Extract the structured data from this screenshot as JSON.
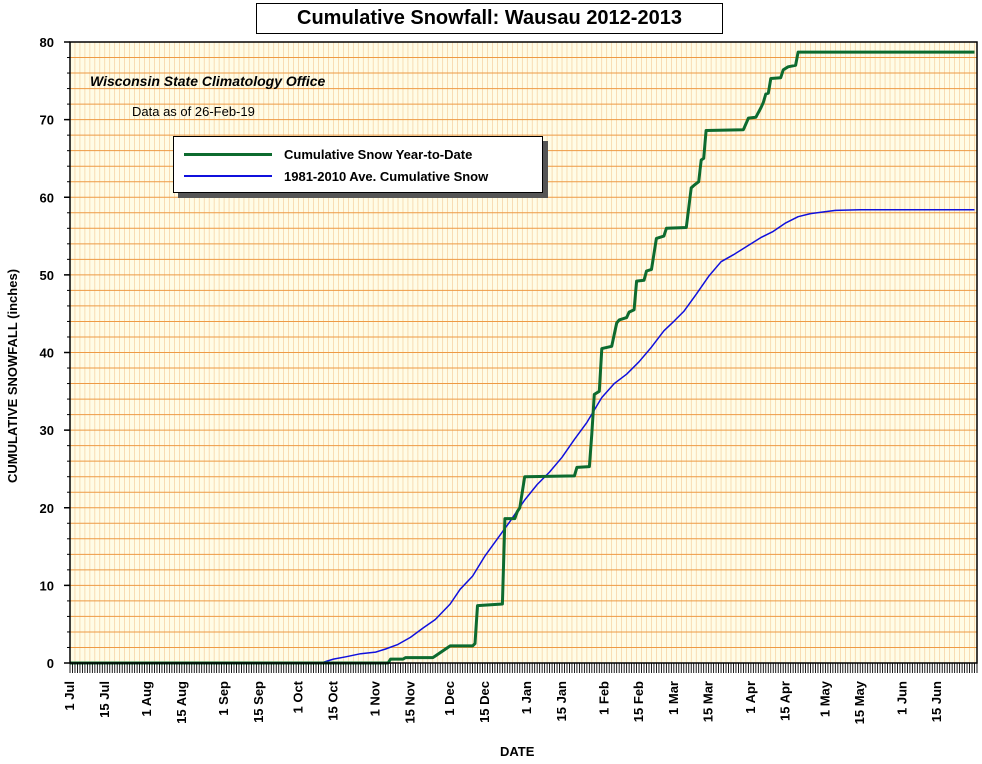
{
  "chart_data": {
    "type": "line",
    "title": "Cumulative Snowfall: Wausau 2012-2013",
    "subtitle": "Wisconsin State Climatology Office",
    "note": "Data as of 26-Feb-19",
    "xlabel": "DATE",
    "ylabel": "CUMULATIVE SNOWFALL (inches)",
    "ylim": [
      0,
      80
    ],
    "y_ticks": [
      0,
      10,
      20,
      30,
      40,
      50,
      60,
      70,
      80
    ],
    "x_range": [
      "1 Jul",
      "30 Jun"
    ],
    "x_tick_labels": [
      "1 Jul",
      "15 Jul",
      "1 Aug",
      "15 Aug",
      "1 Sep",
      "15 Sep",
      "1 Oct",
      "15 Oct",
      "1 Nov",
      "15 Nov",
      "1 Dec",
      "15 Dec",
      "1 Jan",
      "15 Jan",
      "1 Feb",
      "15 Feb",
      "1 Mar",
      "15 Mar",
      "1 Apr",
      "15 Apr",
      "1 May",
      "15 May",
      "1 Jun",
      "15 Jun"
    ],
    "grid": true,
    "legend_position": "top-left",
    "series": [
      {
        "name": "Cumulative Snow Year-to-Date",
        "color": "#0d6b2f",
        "step": true,
        "points": [
          [
            "1 Jul",
            0
          ],
          [
            "6 Nov",
            0
          ],
          [
            "7 Nov",
            0.5
          ],
          [
            "12 Nov",
            0.5
          ],
          [
            "13 Nov",
            0.7
          ],
          [
            "24 Nov",
            0.7
          ],
          [
            "25 Nov",
            0.9
          ],
          [
            "1 Dec",
            2.2
          ],
          [
            "10 Dec",
            2.2
          ],
          [
            "11 Dec",
            2.5
          ],
          [
            "12 Dec",
            7.4
          ],
          [
            "22 Dec",
            7.6
          ],
          [
            "23 Dec",
            18.6
          ],
          [
            "27 Dec",
            18.6
          ],
          [
            "28 Dec",
            19.5
          ],
          [
            "29 Dec",
            20.0
          ],
          [
            "31 Dec",
            24.0
          ],
          [
            "20 Jan",
            24.1
          ],
          [
            "21 Jan",
            25.2
          ],
          [
            "26 Jan",
            25.3
          ],
          [
            "27 Jan",
            29.5
          ],
          [
            "28 Jan",
            34.6
          ],
          [
            "30 Jan",
            35.0
          ],
          [
            "31 Jan",
            40.5
          ],
          [
            "4 Feb",
            40.8
          ],
          [
            "6 Feb",
            43.8
          ],
          [
            "7 Feb",
            44.2
          ],
          [
            "10 Feb",
            44.5
          ],
          [
            "11 Feb",
            45.2
          ],
          [
            "13 Feb",
            45.5
          ],
          [
            "14 Feb",
            49.2
          ],
          [
            "17 Feb",
            49.3
          ],
          [
            "18 Feb",
            50.5
          ],
          [
            "20 Feb",
            50.7
          ],
          [
            "22 Feb",
            54.7
          ],
          [
            "25 Feb",
            55.0
          ],
          [
            "26 Feb",
            56.0
          ],
          [
            "6 Mar",
            56.1
          ],
          [
            "8 Mar",
            61.2
          ],
          [
            "9 Mar",
            61.5
          ],
          [
            "11 Mar",
            62.0
          ],
          [
            "12 Mar",
            64.8
          ],
          [
            "13 Mar",
            65.0
          ],
          [
            "14 Mar",
            68.6
          ],
          [
            "29 Mar",
            68.7
          ],
          [
            "31 Mar",
            70.2
          ],
          [
            "3 Apr",
            70.3
          ],
          [
            "5 Apr",
            71.5
          ],
          [
            "6 Apr",
            72.2
          ],
          [
            "7 Apr",
            73.3
          ],
          [
            "8 Apr",
            73.4
          ],
          [
            "9 Apr",
            75.3
          ],
          [
            "13 Apr",
            75.4
          ],
          [
            "14 Apr",
            76.4
          ],
          [
            "16 Apr",
            76.8
          ],
          [
            "19 Apr",
            77.0
          ],
          [
            "20 Apr",
            78.7
          ],
          [
            "30 Jun",
            78.7
          ]
        ]
      },
      {
        "name": "1981-2010 Ave. Cumulative Snow",
        "color": "#1010dd",
        "step": false,
        "points": [
          [
            "1 Jul",
            0
          ],
          [
            "10 Oct",
            0
          ],
          [
            "15 Oct",
            0.5
          ],
          [
            "20 Oct",
            0.8
          ],
          [
            "26 Oct",
            1.2
          ],
          [
            "1 Nov",
            1.4
          ],
          [
            "5 Nov",
            1.8
          ],
          [
            "10 Nov",
            2.4
          ],
          [
            "15 Nov",
            3.3
          ],
          [
            "20 Nov",
            4.5
          ],
          [
            "25 Nov",
            5.6
          ],
          [
            "1 Dec",
            7.6
          ],
          [
            "5 Dec",
            9.5
          ],
          [
            "10 Dec",
            11.2
          ],
          [
            "15 Dec",
            13.8
          ],
          [
            "20 Dec",
            16.0
          ],
          [
            "25 Dec",
            18.2
          ],
          [
            "31 Dec",
            21.0
          ],
          [
            "5 Jan",
            23.0
          ],
          [
            "10 Jan",
            24.6
          ],
          [
            "15 Jan",
            26.5
          ],
          [
            "20 Jan",
            28.8
          ],
          [
            "25 Jan",
            31.0
          ],
          [
            "31 Jan",
            34.2
          ],
          [
            "5 Feb",
            36.0
          ],
          [
            "10 Feb",
            37.2
          ],
          [
            "15 Feb",
            38.8
          ],
          [
            "20 Feb",
            40.7
          ],
          [
            "25 Feb",
            42.8
          ],
          [
            "1 Mar",
            44.0
          ],
          [
            "5 Mar",
            45.3
          ],
          [
            "10 Mar",
            47.5
          ],
          [
            "15 Mar",
            49.8
          ],
          [
            "20 Mar",
            51.7
          ],
          [
            "25 Mar",
            52.6
          ],
          [
            "31 Mar",
            53.8
          ],
          [
            "5 Apr",
            54.8
          ],
          [
            "10 Apr",
            55.6
          ],
          [
            "15 Apr",
            56.7
          ],
          [
            "20 Apr",
            57.5
          ],
          [
            "25 Apr",
            57.9
          ],
          [
            "30 Apr",
            58.1
          ],
          [
            "5 May",
            58.3
          ],
          [
            "15 May",
            58.4
          ],
          [
            "30 Jun",
            58.4
          ]
        ]
      }
    ]
  }
}
